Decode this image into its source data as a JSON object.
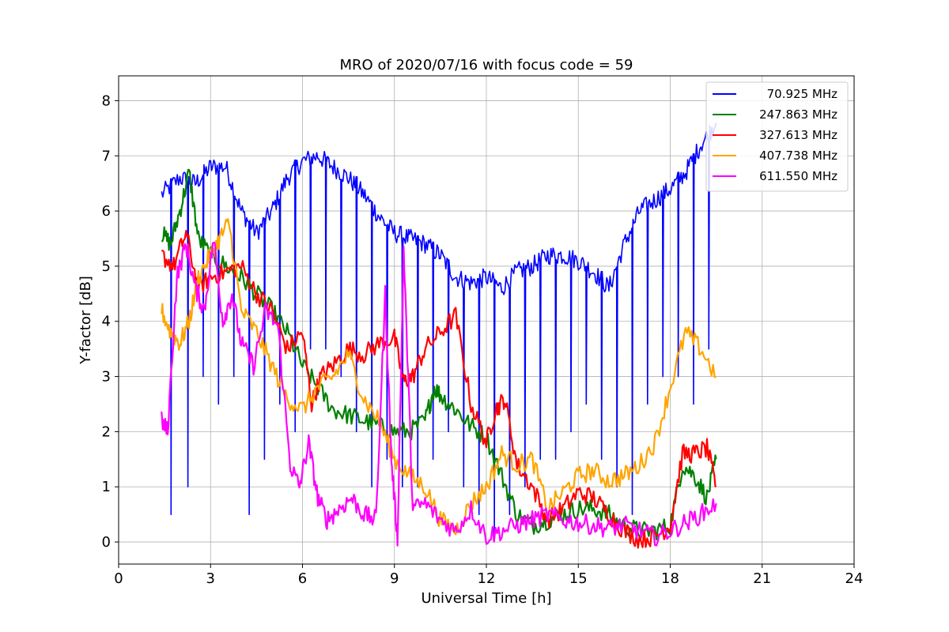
{
  "chart_data": {
    "type": "line",
    "title": "MRO of 2020/07/16 with focus code = 59",
    "xlabel": "Universal Time [h]",
    "ylabel": "Y-factor [dB]",
    "xlim": [
      0,
      24
    ],
    "ylim": [
      -0.4,
      8.45
    ],
    "xticks": [
      0,
      3,
      6,
      9,
      12,
      15,
      18,
      21,
      24
    ],
    "yticks": [
      0,
      1,
      2,
      3,
      4,
      5,
      6,
      7,
      8
    ],
    "grid": true,
    "legend_position": "top-right",
    "series": [
      {
        "name": " 70.925 MHz",
        "color": "#0000ff",
        "x": [
          1.4,
          2,
          2.5,
          3,
          3.5,
          4,
          4.5,
          5,
          5.5,
          6,
          6.5,
          7,
          7.5,
          8,
          8.5,
          9,
          9.5,
          10,
          10.5,
          11,
          11.5,
          12,
          12.5,
          13,
          13.5,
          14,
          14.5,
          15,
          15.5,
          16,
          16.5,
          17,
          17.5,
          18,
          18.5,
          19,
          19.5
        ],
        "values": [
          6.3,
          6.6,
          6.5,
          6.8,
          6.8,
          6.0,
          5.6,
          6.0,
          6.6,
          6.9,
          7.0,
          6.8,
          6.6,
          6.3,
          5.9,
          5.6,
          5.5,
          5.4,
          5.2,
          4.8,
          4.7,
          4.8,
          4.6,
          4.9,
          5.0,
          5.2,
          5.2,
          5.1,
          4.9,
          4.6,
          5.4,
          6.0,
          6.2,
          6.4,
          6.7,
          7.2,
          7.6
        ],
        "dropouts": [
          0.5,
          1.0,
          3.0,
          2.5,
          3.0,
          0.5,
          1.5,
          2.5,
          2.0,
          3.5,
          3.5,
          3.0,
          2.0,
          1.0,
          1.5,
          1.0,
          1.0,
          1.5,
          2.0,
          1.0,
          0.5,
          0.05,
          0.5,
          1.0,
          1.5,
          1.5,
          2.0,
          2.5,
          1.5,
          1.0,
          0.5,
          2.5,
          3.0,
          3.0,
          2.5,
          3.5
        ]
      },
      {
        "name": "247.863 MHz",
        "color": "#008000",
        "x": [
          1.4,
          1.7,
          2.0,
          2.3,
          2.6,
          3.0,
          3.5,
          4.0,
          4.5,
          5.0,
          5.5,
          6.0,
          6.5,
          7.0,
          7.5,
          8.0,
          8.5,
          9.0,
          9.5,
          10.0,
          10.3,
          10.6,
          11.0,
          11.5,
          12.0,
          12.5,
          13.0,
          13.5,
          14.0,
          14.5,
          15.0,
          15.5,
          16.0,
          16.5,
          17.0,
          17.5,
          18.0,
          18.4,
          18.8,
          19.2,
          19.5
        ],
        "values": [
          5.6,
          5.4,
          6.0,
          6.7,
          5.5,
          5.2,
          5.0,
          4.8,
          4.5,
          4.2,
          3.8,
          3.2,
          2.8,
          2.4,
          2.3,
          2.2,
          2.1,
          2.0,
          2.0,
          2.2,
          2.8,
          2.6,
          2.4,
          2.1,
          1.9,
          1.2,
          0.5,
          0.3,
          0.4,
          0.5,
          0.6,
          0.6,
          0.5,
          0.3,
          0.2,
          0.2,
          0.3,
          1.4,
          1.2,
          0.8,
          1.5
        ]
      },
      {
        "name": "327.613 MHz",
        "color": "#ff0000",
        "x": [
          1.4,
          1.8,
          2.2,
          2.6,
          3.0,
          3.5,
          4.0,
          4.5,
          5.0,
          5.5,
          6.0,
          6.3,
          6.6,
          7.0,
          7.5,
          8.0,
          8.5,
          9.0,
          9.3,
          9.6,
          10.0,
          10.5,
          11.0,
          11.5,
          12.0,
          12.3,
          12.6,
          13.0,
          13.5,
          14.0,
          14.5,
          15.0,
          15.5,
          16.0,
          16.5,
          17.0,
          17.5,
          18.0,
          18.4,
          18.8,
          19.2,
          19.5
        ],
        "values": [
          5.2,
          5.0,
          5.6,
          4.6,
          4.8,
          4.9,
          5.0,
          4.5,
          4.2,
          3.5,
          3.8,
          2.5,
          3.0,
          3.2,
          3.5,
          3.4,
          3.6,
          3.7,
          2.9,
          3.0,
          3.5,
          3.8,
          4.1,
          2.5,
          1.8,
          2.4,
          2.6,
          1.4,
          1.0,
          0.4,
          0.6,
          0.9,
          0.8,
          0.5,
          0.2,
          0.05,
          0.1,
          0.3,
          1.6,
          1.6,
          1.7,
          1.0
        ]
      },
      {
        "name": "407.738 MHz",
        "color": "#ffa500",
        "x": [
          1.4,
          1.7,
          2.0,
          2.3,
          2.6,
          3.0,
          3.3,
          3.6,
          4.0,
          4.5,
          5.0,
          5.5,
          6.0,
          6.5,
          7.0,
          7.5,
          8.0,
          8.5,
          9.0,
          9.5,
          10.0,
          10.5,
          11.0,
          11.5,
          12.0,
          12.5,
          13.0,
          13.5,
          14.0,
          14.5,
          15.0,
          15.5,
          16.0,
          16.5,
          17.0,
          17.5,
          18.0,
          18.5,
          19.0,
          19.5
        ],
        "values": [
          4.2,
          3.8,
          3.6,
          4.0,
          4.8,
          5.2,
          5.5,
          5.8,
          4.2,
          3.8,
          3.2,
          2.6,
          2.4,
          2.8,
          3.0,
          3.4,
          2.6,
          2.2,
          1.5,
          1.2,
          1.0,
          0.4,
          0.2,
          0.7,
          1.0,
          1.6,
          1.4,
          1.5,
          0.6,
          0.9,
          1.2,
          1.3,
          1.1,
          1.2,
          1.4,
          1.8,
          2.8,
          3.8,
          3.5,
          3.0
        ]
      },
      {
        "name": "611.550 MHz",
        "color": "#ff00ff",
        "x": [
          1.4,
          1.6,
          1.9,
          2.2,
          2.5,
          2.8,
          3.1,
          3.4,
          3.7,
          4.0,
          4.4,
          4.8,
          5.2,
          5.6,
          5.9,
          6.2,
          6.5,
          6.8,
          7.2,
          7.6,
          8.0,
          8.4,
          8.7,
          8.9,
          9.1,
          9.3,
          9.6,
          10.0,
          10.5,
          11.0,
          11.5,
          12.0,
          12.5,
          13.0,
          13.5,
          14.0,
          14.5,
          15.0,
          15.5,
          16.0,
          16.5,
          17.0,
          17.5,
          18.0,
          18.5,
          19.0,
          19.5
        ],
        "values": [
          2.2,
          2.0,
          4.8,
          5.4,
          4.6,
          4.2,
          5.5,
          4.0,
          4.5,
          3.6,
          3.2,
          4.2,
          3.9,
          1.4,
          1.0,
          1.8,
          0.8,
          0.4,
          0.6,
          0.8,
          0.5,
          0.4,
          4.5,
          1.5,
          0.05,
          5.3,
          0.6,
          0.7,
          0.4,
          0.2,
          0.6,
          0.1,
          0.2,
          0.3,
          0.4,
          0.5,
          0.4,
          0.35,
          0.3,
          0.25,
          0.3,
          0.2,
          0.1,
          0.2,
          0.35,
          0.5,
          0.7
        ]
      }
    ]
  }
}
